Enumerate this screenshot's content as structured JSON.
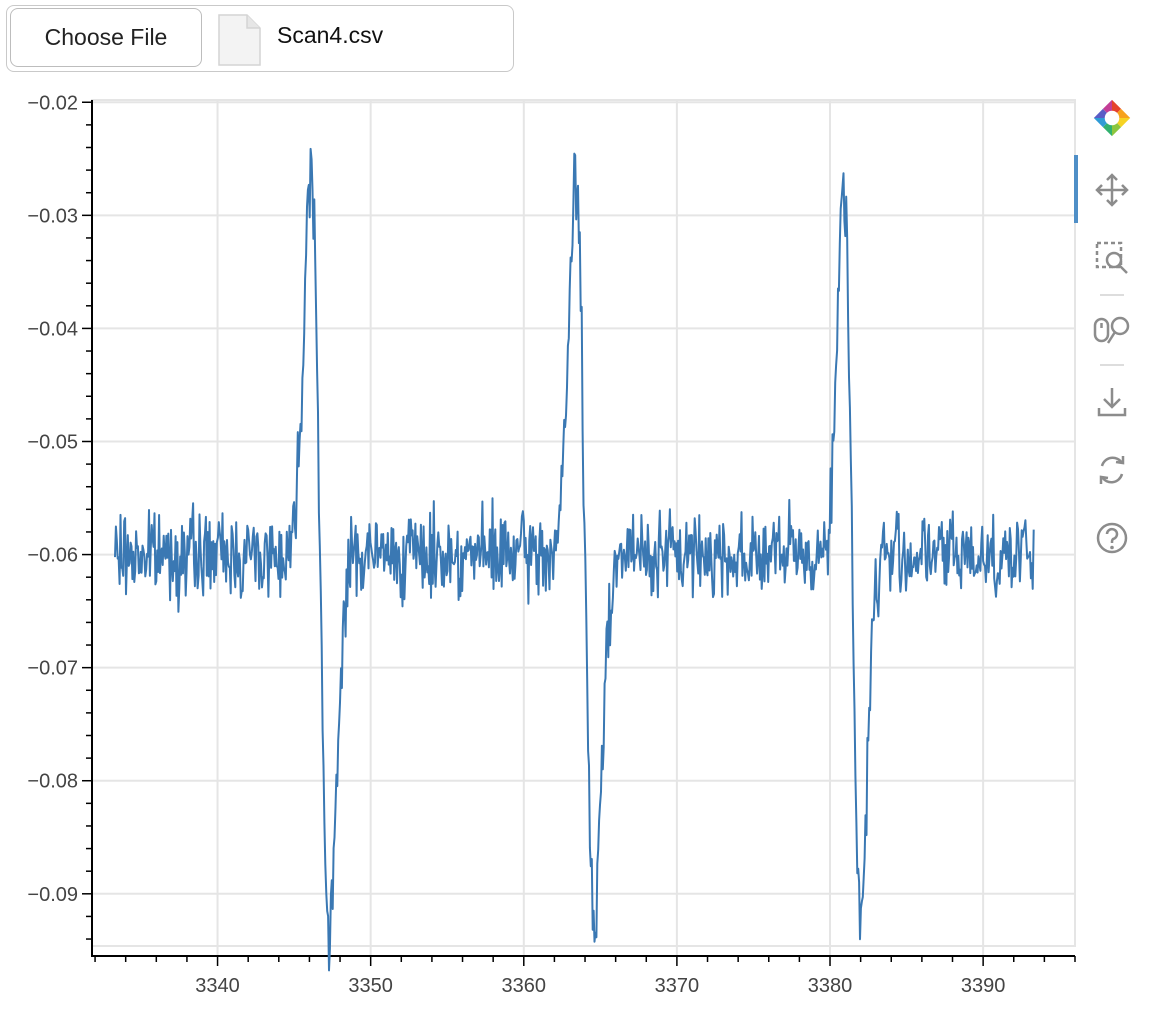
{
  "file_input": {
    "button_label": "Choose File",
    "file_name": "Scan4.csv"
  },
  "toolbar": {
    "tools": [
      {
        "name": "bokeh-logo-icon"
      },
      {
        "name": "pan-icon",
        "active": true
      },
      {
        "name": "box-zoom-icon"
      },
      {
        "name": "wheel-zoom-icon"
      },
      {
        "name": "save-icon"
      },
      {
        "name": "reset-icon"
      },
      {
        "name": "help-icon"
      }
    ]
  },
  "colors": {
    "line": "#3a78b3",
    "grid": "#e5e5e5",
    "axis": "#000000",
    "tick_text": "#444444"
  },
  "chart_data": {
    "type": "line",
    "xlim": [
      3331.8,
      3396.0
    ],
    "ylim": [
      -0.0955,
      -0.0198
    ],
    "x_ticks": [
      3340,
      3350,
      3360,
      3370,
      3380,
      3390
    ],
    "x_tick_labels": [
      "3340",
      "3350",
      "3360",
      "3370",
      "3380",
      "3390"
    ],
    "y_ticks": [
      -0.02,
      -0.03,
      -0.04,
      -0.05,
      -0.06,
      -0.07,
      -0.08,
      -0.09
    ],
    "y_tick_labels": [
      "−0.02",
      "−0.03",
      "−0.04",
      "−0.05",
      "−0.06",
      "−0.07",
      "−0.08",
      "−0.09"
    ],
    "grid": true,
    "series": [
      {
        "x_start": 3333.3,
        "x_end": 3393.3,
        "baseline": -0.06,
        "noise_amplitude": 0.004,
        "peaks": [
          {
            "x_max": 3346.1,
            "y_max": -0.0235,
            "x_min": 3347.3,
            "y_min": -0.0925
          },
          {
            "x_max": 3363.4,
            "y_max": -0.0262,
            "x_min": 3364.6,
            "y_min": -0.092
          },
          {
            "x_max": 3380.9,
            "y_max": -0.0258,
            "x_min": 3382.0,
            "y_min": -0.0902
          }
        ]
      }
    ]
  }
}
